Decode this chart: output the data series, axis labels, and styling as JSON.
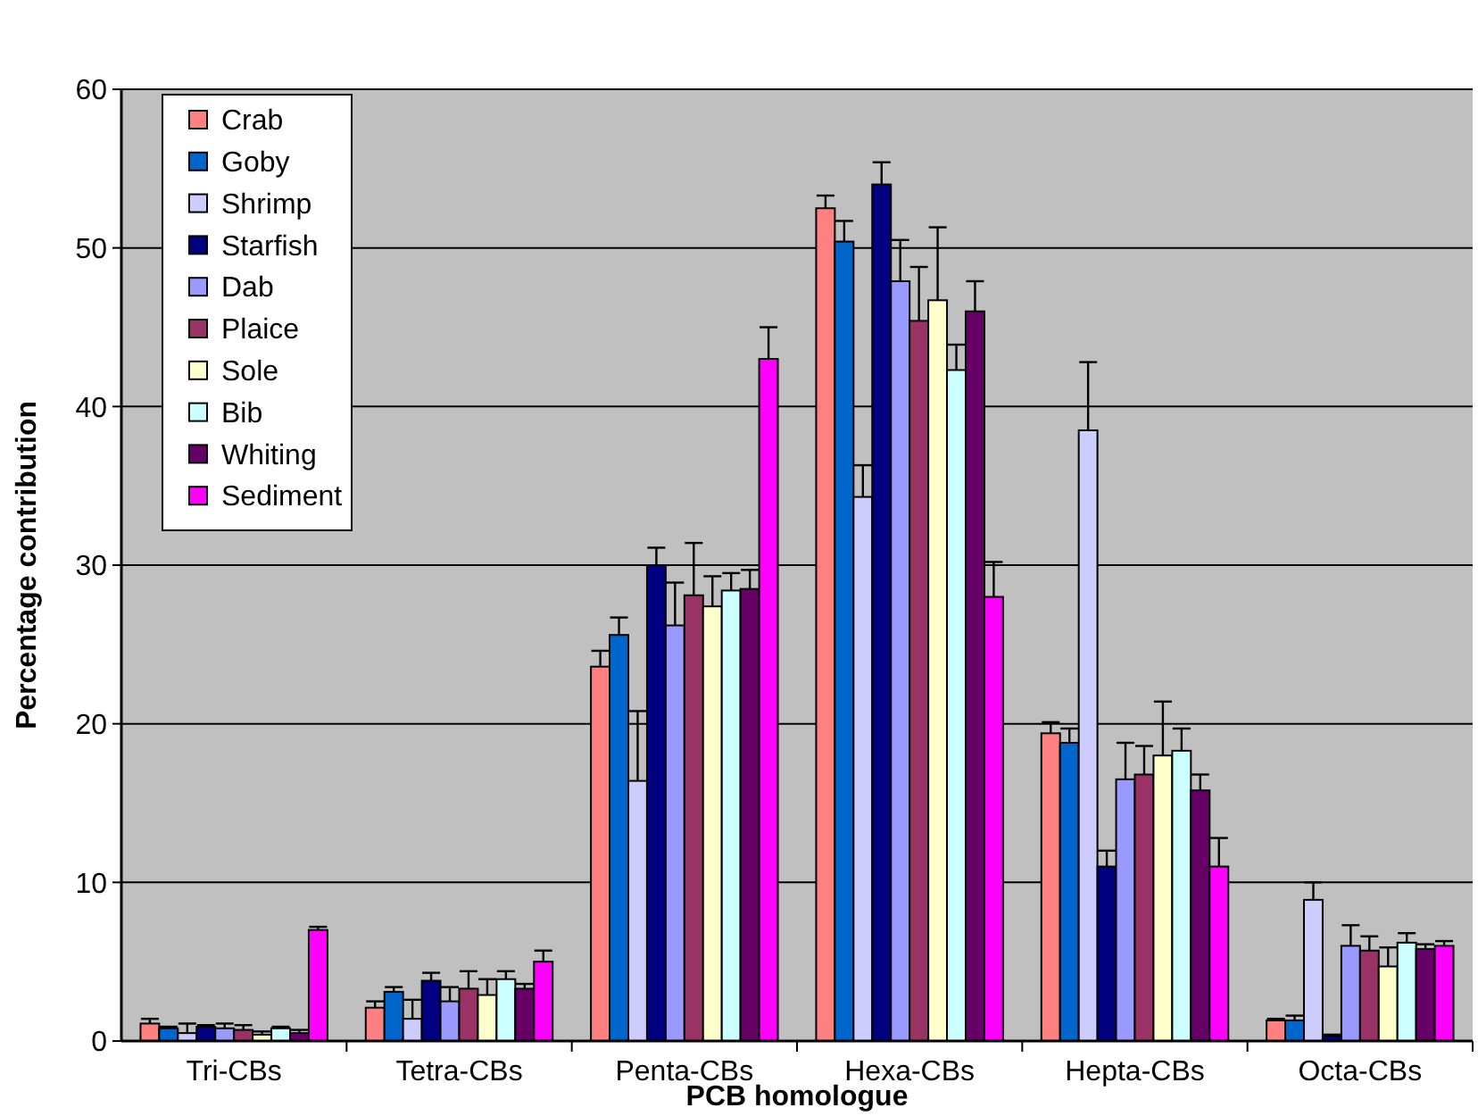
{
  "chart_data": {
    "type": "bar",
    "xlabel": "PCB homologue",
    "ylabel": "Percentage contribution",
    "categories": [
      "Tri-CBs",
      "Tetra-CBs",
      "Penta-CBs",
      "Hexa-CBs",
      "Hepta-CBs",
      "Octa-CBs"
    ],
    "ylim": [
      0,
      60
    ],
    "yticks": [
      0,
      10,
      20,
      30,
      40,
      50,
      60
    ],
    "grid": "y",
    "legend": "top left",
    "series": [
      {
        "name": "Crab",
        "color": "#ff8080",
        "values": [
          1.1,
          2.1,
          23.6,
          52.5,
          19.4,
          1.3
        ],
        "errors": [
          [
            1.1,
            1.4
          ],
          [
            2.1,
            2.5
          ],
          [
            23.6,
            24.6
          ],
          [
            52.5,
            53.3
          ],
          [
            19.4,
            20.1
          ],
          [
            1.3,
            1.4
          ]
        ]
      },
      {
        "name": "Goby",
        "color": "#0066cc",
        "values": [
          0.8,
          3.1,
          25.6,
          50.4,
          18.8,
          1.3
        ],
        "errors": [
          [
            0.8,
            0.9
          ],
          [
            3.1,
            3.4
          ],
          [
            25.6,
            26.7
          ],
          [
            50.4,
            51.7
          ],
          [
            18.8,
            19.7
          ],
          [
            1.3,
            1.6
          ]
        ]
      },
      {
        "name": "Shrimp",
        "color": "#ccccff",
        "values": [
          0.5,
          1.4,
          16.4,
          34.3,
          38.5,
          8.9
        ],
        "errors": [
          [
            0.5,
            1.1
          ],
          [
            1.4,
            2.6
          ],
          [
            16.4,
            20.8
          ],
          [
            34.3,
            36.3
          ],
          [
            38.5,
            42.8
          ],
          [
            8.9,
            10.0
          ]
        ]
      },
      {
        "name": "Starfish",
        "color": "#000080",
        "values": [
          0.9,
          3.8,
          30.0,
          54.0,
          11.0,
          0.3
        ],
        "errors": [
          [
            0.9,
            1.0
          ],
          [
            3.8,
            4.3
          ],
          [
            30.0,
            31.1
          ],
          [
            54.0,
            55.4
          ],
          [
            11.0,
            12.0
          ],
          [
            0.3,
            0.4
          ]
        ]
      },
      {
        "name": "Dab",
        "color": "#9999ff",
        "values": [
          0.8,
          2.5,
          26.2,
          47.9,
          16.5,
          6.0
        ],
        "errors": [
          [
            0.8,
            1.1
          ],
          [
            2.5,
            3.4
          ],
          [
            26.2,
            28.9
          ],
          [
            47.9,
            50.5
          ],
          [
            16.5,
            18.8
          ],
          [
            6.0,
            7.3
          ]
        ]
      },
      {
        "name": "Plaice",
        "color": "#993366",
        "values": [
          0.7,
          3.3,
          28.1,
          45.4,
          16.8,
          5.7
        ],
        "errors": [
          [
            0.7,
            1.0
          ],
          [
            3.3,
            4.4
          ],
          [
            28.1,
            31.4
          ],
          [
            45.4,
            48.8
          ],
          [
            16.8,
            18.6
          ],
          [
            5.7,
            6.6
          ]
        ]
      },
      {
        "name": "Sole",
        "color": "#ffffcc",
        "values": [
          0.4,
          2.9,
          27.4,
          46.7,
          18.0,
          4.7
        ],
        "errors": [
          [
            0.4,
            0.6
          ],
          [
            2.9,
            3.9
          ],
          [
            27.4,
            29.3
          ],
          [
            46.7,
            51.3
          ],
          [
            18.0,
            21.4
          ],
          [
            4.7,
            5.9
          ]
        ]
      },
      {
        "name": "Bib",
        "color": "#ccffff",
        "values": [
          0.8,
          3.9,
          28.4,
          42.3,
          18.3,
          6.2
        ],
        "errors": [
          [
            0.8,
            0.9
          ],
          [
            3.9,
            4.4
          ],
          [
            28.4,
            29.5
          ],
          [
            42.3,
            43.9
          ],
          [
            18.3,
            19.7
          ],
          [
            6.2,
            6.8
          ]
        ]
      },
      {
        "name": "Whiting",
        "color": "#660066",
        "values": [
          0.5,
          3.3,
          28.5,
          46.0,
          15.8,
          5.8
        ],
        "errors": [
          [
            0.5,
            0.7
          ],
          [
            3.3,
            3.6
          ],
          [
            28.5,
            29.7
          ],
          [
            46.0,
            47.9
          ],
          [
            15.8,
            16.8
          ],
          [
            5.8,
            6.1
          ]
        ]
      },
      {
        "name": "Sediment",
        "color": "#ff00ff",
        "values": [
          7.0,
          5.0,
          43.0,
          28.0,
          11.0,
          6.0
        ],
        "errors": [
          [
            7.0,
            7.2
          ],
          [
            5.0,
            5.7
          ],
          [
            43.0,
            45.0
          ],
          [
            28.0,
            30.2
          ],
          [
            11.0,
            12.8
          ],
          [
            6.0,
            6.3
          ]
        ]
      }
    ]
  }
}
